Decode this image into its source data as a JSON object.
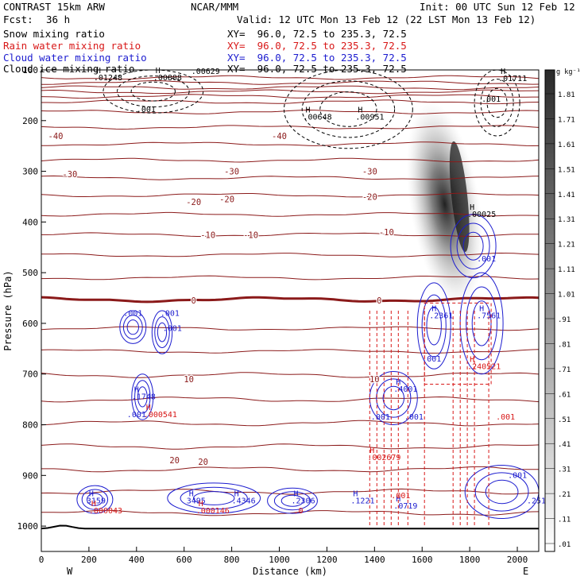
{
  "header": {
    "model": "CONTRAST 15km ARW",
    "org": "NCAR/MMM",
    "init": "Init: 00 UTC Sun 12 Feb 12",
    "fcst_label": "Fcst:",
    "fcst_value": "36 h",
    "valid": "Valid: 12 UTC Mon 13 Feb 12 (22 LST Mon 13 Feb 12)",
    "fields": [
      {
        "name": "Snow mixing ratio",
        "xy": "XY=  96.0, 72.5 to 235.3, 72.5",
        "color": "#000000"
      },
      {
        "name": "Rain water mixing ratio",
        "xy": "XY=  96.0, 72.5 to 235.3, 72.5",
        "color": "#d81818"
      },
      {
        "name": "Cloud water mixing ratio",
        "xy": "XY=  96.0, 72.5 to 235.3, 72.5",
        "color": "#1c1ccf"
      },
      {
        "name": "Cloud ice mixing ratio",
        "xy": "XY=  96.0, 72.5 to 235.3, 72.5",
        "color": "#000000"
      }
    ]
  },
  "chart_data": {
    "type": "cross-section",
    "xlabel": "Distance (km)",
    "ylabel": "Pressure (hPa)",
    "xlim": [
      0,
      2090
    ],
    "ylim": [
      1050,
      100
    ],
    "x_ticks": [
      0,
      200,
      400,
      600,
      800,
      1000,
      1200,
      1400,
      1600,
      1800,
      2000
    ],
    "y_ticks": [
      200,
      300,
      400,
      500,
      600,
      700,
      800,
      900,
      1000
    ],
    "y_top_label": "100",
    "x_end_labels": {
      "left": "W",
      "right": "E"
    },
    "colorbar": {
      "unit": "g kg⁻¹",
      "levels": [
        "1.81",
        "1.71",
        "1.61",
        "1.51",
        "1.41",
        "1.31",
        "1.21",
        "1.11",
        "1.01",
        ".91",
        ".81",
        ".71",
        ".61",
        ".51",
        ".41",
        ".31",
        ".21",
        ".11",
        ".01"
      ]
    },
    "colors": {
      "temperature": "#8b1a1a",
      "freezing_level": "#8b1a1a",
      "rain": "#d81818",
      "cloud_water": "#1c1ccf",
      "cloud_ice": "#000000",
      "terrain": "#000000"
    },
    "isotherm_levels_hpa": [
      115,
      125,
      135,
      143,
      152,
      163,
      183,
      213,
      246,
      278,
      313,
      347,
      385,
      425,
      465,
      510,
      610,
      655,
      702,
      750,
      797,
      843,
      888,
      932,
      974
    ],
    "freezing_level_hpa": 553,
    "temperature_labels": [
      {
        "text": "-40",
        "x": 60,
        "p": 230
      },
      {
        "text": "-40",
        "x": 1000,
        "p": 230
      },
      {
        "text": "-30",
        "x": 120,
        "p": 305
      },
      {
        "text": "-30",
        "x": 800,
        "p": 300
      },
      {
        "text": "-30",
        "x": 1380,
        "p": 300
      },
      {
        "text": "-20",
        "x": 640,
        "p": 360
      },
      {
        "text": "-20",
        "x": 780,
        "p": 355
      },
      {
        "text": "-20",
        "x": 1380,
        "p": 350
      },
      {
        "text": "-10",
        "x": 700,
        "p": 425
      },
      {
        "text": "-10",
        "x": 880,
        "p": 425
      },
      {
        "text": "-10",
        "x": 1450,
        "p": 420
      },
      {
        "text": "0",
        "x": 640,
        "p": 555
      },
      {
        "text": "0",
        "x": 1420,
        "p": 555
      },
      {
        "text": "10",
        "x": 620,
        "p": 710
      },
      {
        "text": "10",
        "x": 1400,
        "p": 710
      },
      {
        "text": "20",
        "x": 560,
        "p": 870
      },
      {
        "text": "20",
        "x": 680,
        "p": 873
      }
    ],
    "ice_labels": [
      {
        "h": "H",
        "text": ".01248",
        "x": 230,
        "p": 120
      },
      {
        "h": "H",
        "text": ".00808",
        "x": 480,
        "p": 120
      },
      {
        "text": ".00629",
        "x": 640,
        "p": 108
      },
      {
        "text": ".001",
        "x": 410,
        "p": 183
      },
      {
        "h": "H",
        "text": ".00648",
        "x": 1110,
        "p": 198
      },
      {
        "h": "H",
        "text": ".00951",
        "x": 1330,
        "p": 198
      },
      {
        "text": ".001",
        "x": 1860,
        "p": 163
      },
      {
        "h": "H",
        "text": ".01711",
        "x": 1930,
        "p": 122
      },
      {
        "h": "H",
        "text": ".00025",
        "x": 1800,
        "p": 390
      }
    ],
    "cloud_water_labels": [
      {
        "text": ".001",
        "x": 355,
        "p": 585
      },
      {
        "text": ".001",
        "x": 510,
        "p": 585
      },
      {
        "text": ".001",
        "x": 520,
        "p": 615
      },
      {
        "h": "H",
        "text": ".1748",
        "x": 390,
        "p": 750
      },
      {
        "text": ".001",
        "x": 370,
        "p": 785
      },
      {
        "h": "H",
        "text": ".4001",
        "x": 1490,
        "p": 735
      },
      {
        "text": ".001",
        "x": 1395,
        "p": 790
      },
      {
        "text": ".001",
        "x": 1535,
        "p": 790
      },
      {
        "text": ".001",
        "x": 1610,
        "p": 675
      },
      {
        "h": "H",
        "text": ".2361",
        "x": 1640,
        "p": 590
      },
      {
        "h": "H",
        "text": ".7561",
        "x": 1840,
        "p": 590
      },
      {
        "text": ".001",
        "x": 1840,
        "p": 478
      },
      {
        "h": "H",
        "text": "3159",
        "x": 200,
        "p": 955
      },
      {
        "h": "H",
        "text": "3495",
        "x": 620,
        "p": 955
      },
      {
        "h": "H",
        "text": ".4346",
        "x": 810,
        "p": 955
      },
      {
        "h": "H",
        "text": ".2306",
        "x": 1060,
        "p": 955
      },
      {
        "h": "H",
        "text": ".1221",
        "x": 1310,
        "p": 955
      },
      {
        "h": "H",
        "text": ".0719",
        "x": 1490,
        "p": 965
      },
      {
        "text": ".001",
        "x": 1970,
        "p": 905
      },
      {
        "text": ".251",
        "x": 2050,
        "p": 955
      }
    ],
    "rain_labels": [
      {
        "h": "H",
        "text": ".000541",
        "x": 440,
        "p": 785
      },
      {
        "h": "H",
        "text": ".002679",
        "x": 1380,
        "p": 870
      },
      {
        "h": "H",
        "text": ".240521",
        "x": 1800,
        "p": 690
      },
      {
        "text": ".001",
        "x": 1920,
        "p": 790
      },
      {
        "text": ".001",
        "x": 1480,
        "p": 945
      },
      {
        "h": "H",
        "text": ".000043",
        "x": 210,
        "p": 975
      },
      {
        "h": "H",
        "text": ".000146",
        "x": 660,
        "p": 975
      },
      {
        "text": ".0",
        "x": 1070,
        "p": 975
      }
    ],
    "cloud_water_cells": [
      {
        "x": [
          330,
          440
        ],
        "p": [
          575,
          640
        ]
      },
      {
        "x": [
          465,
          550
        ],
        "p": [
          575,
          660
        ]
      },
      {
        "x": [
          380,
          470
        ],
        "p": [
          700,
          790
        ]
      },
      {
        "x": [
          1380,
          1580
        ],
        "p": [
          695,
          800
        ]
      },
      {
        "x": [
          1580,
          1720
        ],
        "p": [
          520,
          690
        ]
      },
      {
        "x": [
          1760,
          1940
        ],
        "p": [
          500,
          700
        ]
      },
      {
        "x": [
          1720,
          1910
        ],
        "p": [
          385,
          510
        ]
      },
      {
        "x": [
          150,
          300
        ],
        "p": [
          920,
          975
        ]
      },
      {
        "x": [
          530,
          920
        ],
        "p": [
          915,
          975
        ]
      },
      {
        "x": [
          950,
          1160
        ],
        "p": [
          925,
          975
        ]
      },
      {
        "x": [
          1780,
          2090
        ],
        "p": [
          880,
          985
        ]
      }
    ],
    "ice_cells": [
      {
        "x": [
          1020,
          1560
        ],
        "p": [
          100,
          255
        ]
      },
      {
        "x": [
          1820,
          2010
        ],
        "p": [
          100,
          230
        ]
      },
      {
        "x": [
          260,
          680
        ],
        "p": [
          100,
          185
        ]
      }
    ],
    "rain_columns_x": [
      1380,
      1410,
      1440,
      1470,
      1500,
      1540,
      1610,
      1730,
      1760,
      1790,
      1820,
      1880
    ],
    "snow_plume": {
      "x_center_top": 1620,
      "x_center_bottom": 1770,
      "p_top": 160,
      "p_bottom": 570,
      "max": 1.6
    }
  }
}
